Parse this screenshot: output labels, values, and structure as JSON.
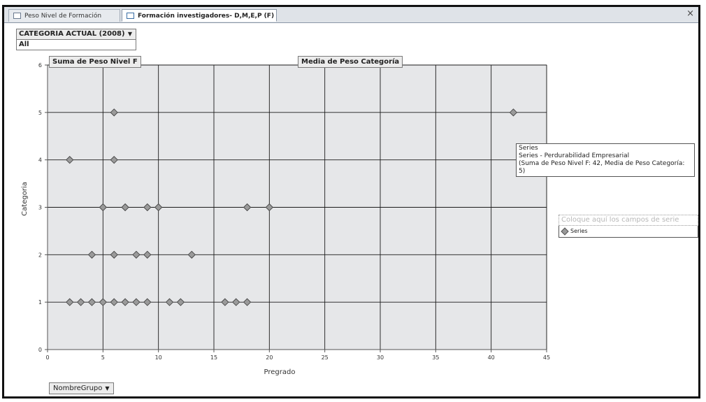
{
  "tabs": [
    {
      "label": "Peso Nivel de Formación"
    },
    {
      "label": "Formación investigadores- D,M,E,P (F)"
    }
  ],
  "close_label": "×",
  "filter": {
    "field": "CATEGORIA ACTUAL (2008)",
    "value": "All"
  },
  "drop_labels": {
    "sum": "Suma de Peso Nivel F",
    "mean": "Media de Peso Categoría"
  },
  "legend": {
    "hint": "Coloque aquí los campos de serie",
    "entry": "Series"
  },
  "group_button": "NombreGrupo",
  "tooltip": {
    "line1": "Series",
    "line2": "Series - Perdurabilidad Empresarial",
    "line3": "(Suma de Peso Nivel F: 42, Media de Peso Categoría: 5)"
  },
  "colors": {
    "plot_bg": "#e6e7e9",
    "marker": "#9a9a9a",
    "grid": "#1a1a1a"
  },
  "chart_data": {
    "type": "scatter",
    "xlabel": "Pregrado",
    "ylabel": "Categoria",
    "xlim": [
      0,
      45
    ],
    "ylim": [
      0,
      6
    ],
    "xticks": [
      0,
      5,
      10,
      15,
      20,
      25,
      30,
      35,
      40,
      45
    ],
    "yticks": [
      0,
      1,
      2,
      3,
      4,
      5,
      6
    ],
    "grid": true,
    "legend_position": "right",
    "series": [
      {
        "name": "Series",
        "points": [
          [
            2,
            1
          ],
          [
            3,
            1
          ],
          [
            4,
            1
          ],
          [
            5,
            1
          ],
          [
            6,
            1
          ],
          [
            7,
            1
          ],
          [
            8,
            1
          ],
          [
            9,
            1
          ],
          [
            11,
            1
          ],
          [
            12,
            1
          ],
          [
            16,
            1
          ],
          [
            17,
            1
          ],
          [
            18,
            1
          ],
          [
            4,
            2
          ],
          [
            6,
            2
          ],
          [
            8,
            2
          ],
          [
            9,
            2
          ],
          [
            13,
            2
          ],
          [
            5,
            3
          ],
          [
            7,
            3
          ],
          [
            9,
            3
          ],
          [
            10,
            3
          ],
          [
            18,
            3
          ],
          [
            20,
            3
          ],
          [
            2,
            4
          ],
          [
            6,
            4
          ],
          [
            6,
            5
          ],
          [
            42,
            5
          ]
        ]
      }
    ]
  }
}
